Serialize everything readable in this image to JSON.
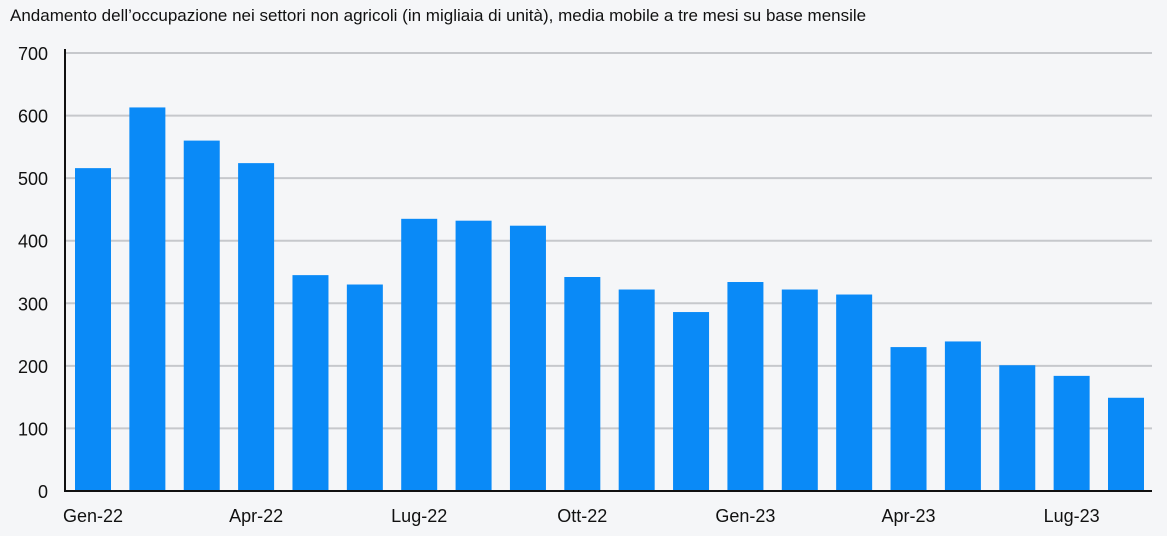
{
  "chart_data": {
    "type": "bar",
    "title": "Andamento dell’occupazione nei settori non agricoli (in migliaia di unità), media mobile a tre mesi su base mensile",
    "xlabel": "",
    "ylabel": "",
    "ylim": [
      0,
      700
    ],
    "y_ticks": [
      "0",
      "100",
      "200",
      "300",
      "400",
      "500",
      "600",
      "700"
    ],
    "categories": [
      "Gen-22",
      "Feb-22",
      "Mar-22",
      "Apr-22",
      "Mag-22",
      "Giu-22",
      "Lug-22",
      "Ago-22",
      "Set-22",
      "Ott-22",
      "Nov-22",
      "Dic-22",
      "Gen-23",
      "Feb-23",
      "Mar-23",
      "Apr-23",
      "Mag-23",
      "Giu-23",
      "Lug-23",
      "Ago-23"
    ],
    "x_tick_labels": [
      "Gen-22",
      "",
      "",
      "Apr-22",
      "",
      "",
      "Lug-22",
      "",
      "",
      "Ott-22",
      "",
      "",
      "Gen-23",
      "",
      "",
      "Apr-23",
      "",
      "",
      "Lug-23",
      ""
    ],
    "values": [
      516,
      613,
      560,
      524,
      345,
      330,
      435,
      432,
      424,
      342,
      322,
      286,
      334,
      322,
      314,
      230,
      239,
      201,
      184,
      149
    ],
    "bar_color": "#0a8af7",
    "grid": true,
    "grid_color": "#c6c8cc",
    "legend": "none"
  }
}
